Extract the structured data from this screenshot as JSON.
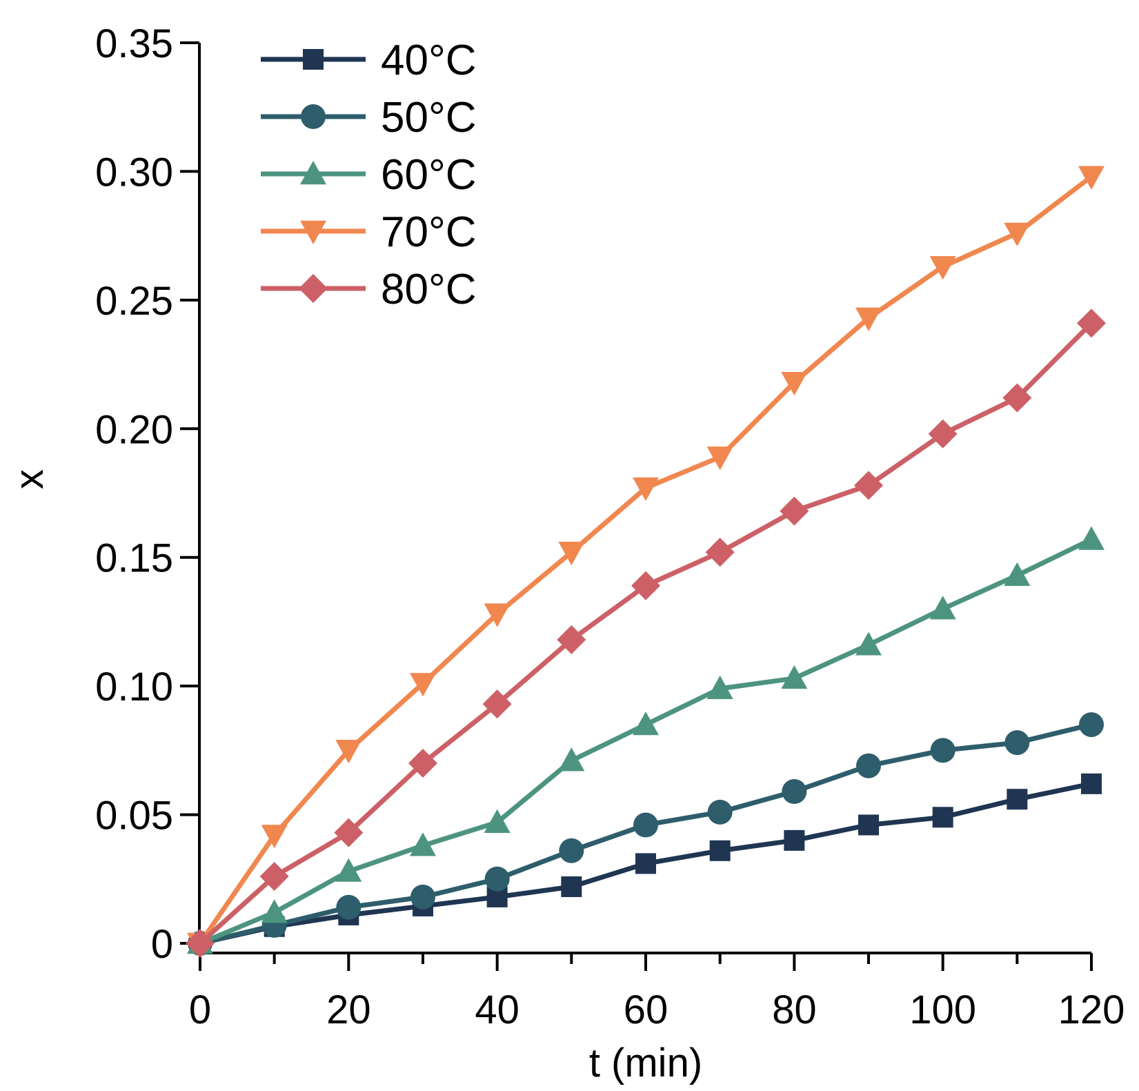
{
  "chart_data": {
    "type": "line",
    "title": "",
    "xlabel": "t (min)",
    "ylabel": "x",
    "xlim": [
      0,
      120
    ],
    "ylim": [
      0,
      0.35
    ],
    "x_ticks": [
      0,
      20,
      40,
      60,
      80,
      100,
      120
    ],
    "x_tick_labels": [
      "0",
      "20",
      "40",
      "60",
      "80",
      "100",
      "120"
    ],
    "x_minor_ticks": [
      10,
      30,
      50,
      70,
      90,
      110
    ],
    "y_ticks": [
      0,
      0.05,
      0.1,
      0.15,
      0.2,
      0.25,
      0.3,
      0.35
    ],
    "y_tick_labels": [
      "0",
      "0.05",
      "0.10",
      "0.15",
      "0.20",
      "0.25",
      "0.30",
      "0.35"
    ],
    "grid": false,
    "legend_position": "top-left",
    "x": [
      0,
      10,
      20,
      30,
      40,
      50,
      60,
      70,
      80,
      90,
      100,
      110,
      120
    ],
    "series": [
      {
        "name": "40°C",
        "color": "#1f3552",
        "marker": "square",
        "values": [
          0,
          0.0065,
          0.011,
          0.0145,
          0.018,
          0.022,
          0.031,
          0.036,
          0.04,
          0.046,
          0.049,
          0.056,
          0.062
        ]
      },
      {
        "name": "50°C",
        "color": "#2e5d6b",
        "marker": "circle",
        "values": [
          0,
          0.007,
          0.014,
          0.018,
          0.025,
          0.036,
          0.046,
          0.051,
          0.059,
          0.069,
          0.075,
          0.078,
          0.085
        ]
      },
      {
        "name": "60°C",
        "color": "#4d9480",
        "marker": "triangle-up",
        "values": [
          0,
          0.012,
          0.028,
          0.038,
          0.047,
          0.071,
          0.085,
          0.099,
          0.103,
          0.116,
          0.13,
          0.143,
          0.157
        ]
      },
      {
        "name": "70°C",
        "color": "#f0874f",
        "marker": "triangle-down",
        "values": [
          0,
          0.042,
          0.075,
          0.101,
          0.128,
          0.152,
          0.177,
          0.189,
          0.218,
          0.243,
          0.263,
          0.276,
          0.298
        ]
      },
      {
        "name": "80°C",
        "color": "#cc6066",
        "marker": "diamond",
        "values": [
          0,
          0.026,
          0.043,
          0.07,
          0.093,
          0.118,
          0.139,
          0.152,
          0.168,
          0.178,
          0.198,
          0.212,
          0.241
        ]
      }
    ]
  }
}
